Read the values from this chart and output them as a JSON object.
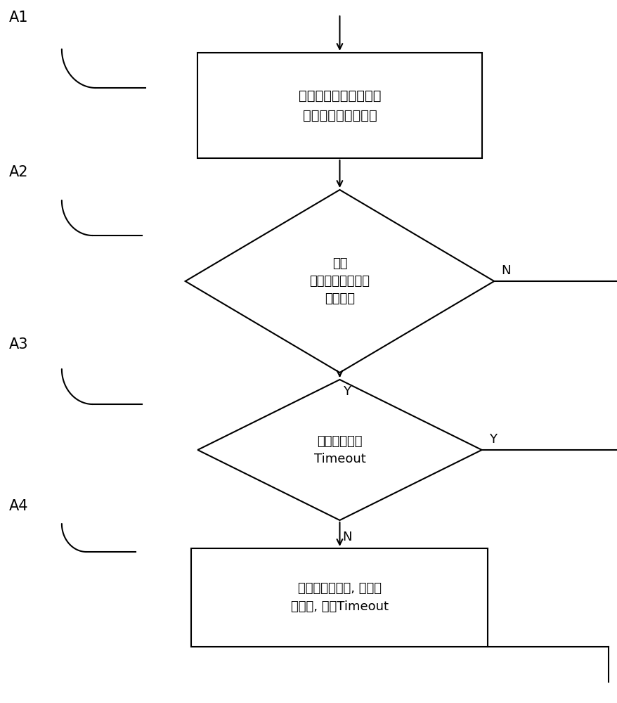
{
  "background_color": "#ffffff",
  "line_color": "#000000",
  "text_color": "#000000",
  "fig_width": 8.79,
  "fig_height": 10.0,
  "dpi": 100,
  "labels": {
    "A1": "A1",
    "A2": "A2",
    "A3": "A3",
    "A4": "A4"
  },
  "box1_text": "主控核按顺序依次读取\n会话表中的会话节点",
  "diamond2_text": "判断\n当前会话节点是否\n需要老化",
  "diamond3_text": "判断是否存在\nTimeout",
  "box4_text": "获取创建转发核, 发送老\n化消息, 标记Timeout",
  "N_label2": "N",
  "Y_label2": "Y",
  "Y_label3": "Y",
  "N_label3": "N"
}
